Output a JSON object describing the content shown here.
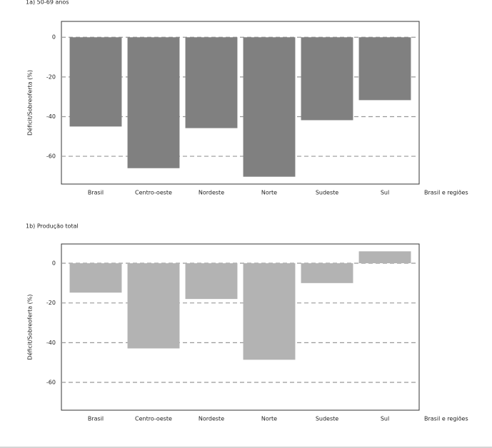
{
  "chart_data": [
    {
      "type": "bar",
      "title": "1a) 50-69 anos",
      "y_label": "Déficit/Sobreoferta (%)",
      "x_label": "Brasil e regiões",
      "categories": [
        "Brasil",
        "Centro-oeste",
        "Nordeste",
        "Norte",
        "Sudeste",
        "Sul"
      ],
      "values": [
        -45,
        -66,
        -45.8,
        -70.3,
        -41.8,
        -31.7
      ],
      "color": "#808080",
      "ylim": [
        -74,
        8
      ],
      "yticks": [
        0,
        -20,
        -40,
        -60
      ],
      "grid": true
    },
    {
      "type": "bar",
      "title": "1b) Produção total",
      "y_label": "Déficit/Sobreoferta (%)",
      "x_label": "Brasil e regiões",
      "categories": [
        "Brasil",
        "Centro-oeste",
        "Nordeste",
        "Norte",
        "Sudeste",
        "Sul"
      ],
      "values": [
        -14.8,
        -42.9,
        -18,
        -48.6,
        -10,
        6
      ],
      "color": "#b3b3b3",
      "ylim": [
        -74,
        9.7
      ],
      "yticks": [
        0,
        -20,
        -40,
        -60
      ],
      "grid": true
    }
  ]
}
